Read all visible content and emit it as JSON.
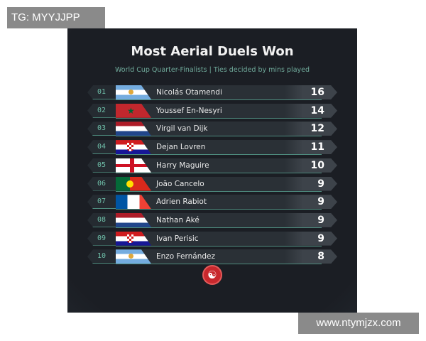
{
  "watermark_top": "TG: MYYJJPP",
  "watermark_bottom": "www.ntymjzx.com",
  "title": "Most Aerial Duels Won",
  "subtitle": "World Cup Quarter-Finalists | Ties decided by mins played",
  "rows": [
    {
      "rank": "01",
      "flag": "argentina",
      "name": "Nicolás Otamendi",
      "value": "16"
    },
    {
      "rank": "02",
      "flag": "morocco",
      "name": "Youssef En-Nesyri",
      "value": "14"
    },
    {
      "rank": "03",
      "flag": "netherlands",
      "name": "Virgil van Dijk",
      "value": "12"
    },
    {
      "rank": "04",
      "flag": "croatia",
      "name": "Dejan Lovren",
      "value": "11"
    },
    {
      "rank": "05",
      "flag": "england",
      "name": "Harry Maguire",
      "value": "10"
    },
    {
      "rank": "06",
      "flag": "portugal",
      "name": "João Cancelo",
      "value": "9"
    },
    {
      "rank": "07",
      "flag": "france",
      "name": "Adrien Rabiot",
      "value": "9"
    },
    {
      "rank": "08",
      "flag": "netherlands",
      "name": "Nathan Aké",
      "value": "9"
    },
    {
      "rank": "09",
      "flag": "croatia",
      "name": "Ivan Perisic",
      "value": "9"
    },
    {
      "rank": "10",
      "flag": "argentina",
      "name": "Enzo Fernández",
      "value": "8"
    }
  ],
  "colors": {
    "background": "#1b1e24",
    "accent": "#6fa99a",
    "logo": "#c8282d"
  }
}
